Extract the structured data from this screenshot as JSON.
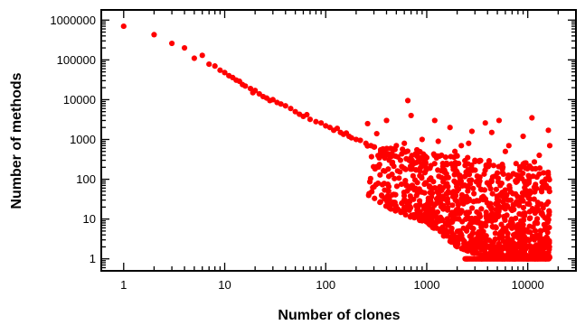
{
  "chart_data": {
    "type": "scatter",
    "title": "",
    "xlabel": "Number of clones",
    "ylabel": "Number of methods",
    "xscale": "log",
    "yscale": "log",
    "xlim": [
      0.6,
      30000
    ],
    "ylim": [
      0.5,
      1800000
    ],
    "x_ticks": [
      1,
      10,
      100,
      1000,
      10000
    ],
    "x_tick_labels": [
      "1",
      "10",
      "100",
      "1000",
      "10000"
    ],
    "y_ticks": [
      1,
      10,
      100,
      1000,
      10000,
      100000,
      1000000
    ],
    "y_tick_labels": [
      "1",
      "10",
      "100",
      "1000",
      "10000",
      "100000",
      "1000000"
    ],
    "grid": false,
    "legend": "none",
    "marker_color": "#ff0000",
    "series": [
      {
        "points": [
          [
            1,
            700000
          ],
          [
            2,
            430000
          ],
          [
            3,
            260000
          ],
          [
            4,
            200000
          ],
          [
            5,
            110000
          ],
          [
            6,
            130000
          ],
          [
            7,
            78000
          ],
          [
            8,
            70000
          ],
          [
            9,
            55000
          ],
          [
            10,
            48000
          ],
          [
            11,
            40000
          ],
          [
            12,
            36000
          ],
          [
            13,
            31000
          ],
          [
            14,
            29000
          ],
          [
            15,
            24000
          ],
          [
            16,
            22000
          ],
          [
            18,
            19000
          ],
          [
            19,
            15000
          ],
          [
            20,
            17000
          ],
          [
            22,
            14000
          ],
          [
            24,
            12000
          ],
          [
            26,
            11000
          ],
          [
            28,
            9500
          ],
          [
            30,
            10000
          ],
          [
            33,
            8500
          ],
          [
            36,
            7800
          ],
          [
            40,
            7000
          ],
          [
            45,
            6000
          ],
          [
            50,
            5000
          ],
          [
            55,
            4300
          ],
          [
            60,
            3800
          ],
          [
            65,
            4200
          ],
          [
            70,
            3200
          ],
          [
            80,
            2800
          ],
          [
            90,
            2600
          ],
          [
            100,
            2200
          ],
          [
            110,
            2000
          ],
          [
            120,
            1700
          ],
          [
            130,
            1900
          ],
          [
            140,
            1500
          ],
          [
            150,
            1350
          ],
          [
            160,
            1450
          ],
          [
            170,
            1200
          ],
          [
            180,
            1100
          ],
          [
            200,
            1000
          ],
          [
            220,
            950
          ],
          [
            250,
            800
          ],
          [
            260,
            2500
          ],
          [
            280,
            700
          ],
          [
            300,
            650
          ],
          [
            320,
            1400
          ],
          [
            350,
            550
          ],
          [
            380,
            500
          ],
          [
            400,
            3000
          ],
          [
            420,
            400
          ],
          [
            450,
            380
          ],
          [
            500,
            700
          ],
          [
            550,
            300
          ],
          [
            600,
            800
          ],
          [
            650,
            9500
          ],
          [
            700,
            4000
          ],
          [
            750,
            250
          ],
          [
            800,
            550
          ],
          [
            900,
            1000
          ],
          [
            1000,
            350
          ],
          [
            1100,
            220
          ],
          [
            1200,
            3000
          ],
          [
            1300,
            900
          ],
          [
            1400,
            400
          ],
          [
            1500,
            150
          ],
          [
            1700,
            2000
          ],
          [
            1900,
            500
          ],
          [
            2000,
            150
          ],
          [
            2200,
            700
          ],
          [
            2400,
            2
          ],
          [
            2500,
            1
          ],
          [
            2600,
            800
          ],
          [
            2800,
            1600
          ],
          [
            3000,
            300
          ],
          [
            3200,
            90
          ],
          [
            3500,
            1
          ],
          [
            3800,
            2600
          ],
          [
            4000,
            2
          ],
          [
            4400,
            1500
          ],
          [
            4800,
            120
          ],
          [
            5200,
            3000
          ],
          [
            5600,
            1
          ],
          [
            6000,
            500
          ],
          [
            6500,
            700
          ],
          [
            7000,
            2
          ],
          [
            7500,
            1
          ],
          [
            8000,
            100
          ],
          [
            8500,
            200
          ],
          [
            9000,
            1200
          ],
          [
            10000,
            1
          ],
          [
            11000,
            3500
          ],
          [
            12000,
            60
          ],
          [
            13000,
            400
          ],
          [
            14000,
            2
          ],
          [
            15000,
            1
          ],
          [
            16000,
            1700
          ],
          [
            16500,
            700
          ]
        ]
      }
    ],
    "dense_region": {
      "description_free": true,
      "x_start": 250,
      "x_end": 16500,
      "y_floor_values": [
        1,
        2
      ],
      "band": [
        [
          250,
          40,
          900
        ],
        [
          500,
          15,
          600
        ],
        [
          1000,
          8,
          500
        ],
        [
          2000,
          2,
          400
        ],
        [
          4000,
          1,
          300
        ],
        [
          8000,
          1,
          250
        ],
        [
          16500,
          1,
          300
        ]
      ],
      "count": 1100,
      "seed": 17
    }
  }
}
